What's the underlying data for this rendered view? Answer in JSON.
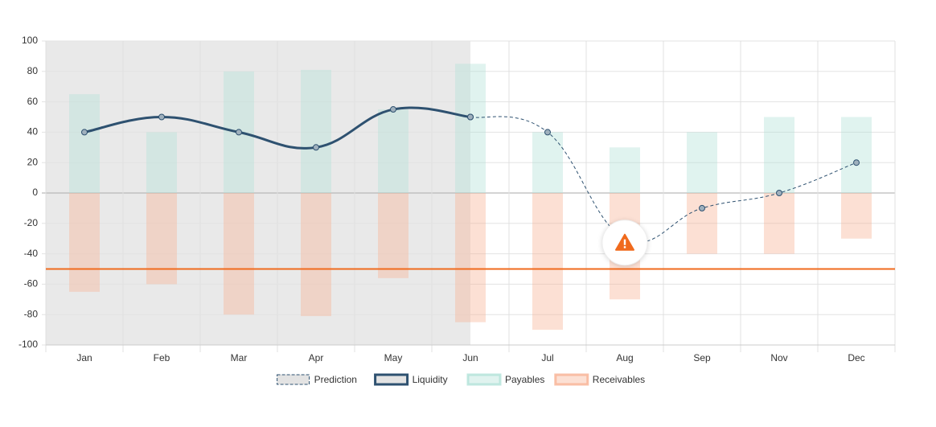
{
  "chart_data": {
    "type": "bar",
    "categories": [
      "Jan",
      "Feb",
      "Mar",
      "Apr",
      "May",
      "Jun",
      "Jul",
      "Aug",
      "Sep",
      "Nov",
      "Dec"
    ],
    "series": [
      {
        "name": "Prediction",
        "color": "#2e5170",
        "values": [
          null,
          null,
          null,
          null,
          null,
          50,
          40,
          -30,
          -10,
          0,
          20
        ]
      },
      {
        "name": "Liquidity",
        "color": "#2e5170",
        "values": [
          40,
          50,
          40,
          30,
          55,
          50,
          null,
          null,
          null,
          null,
          null
        ]
      },
      {
        "name": "Payables",
        "color": "#b2e2d8",
        "values": [
          65,
          40,
          80,
          81,
          55,
          85,
          40,
          30,
          40,
          50,
          50
        ]
      },
      {
        "name": "Receivables",
        "color": "#f7b294",
        "values": [
          -65,
          -60,
          -80,
          -81,
          -56,
          -85,
          -90,
          -70,
          -40,
          -40,
          -30
        ]
      }
    ],
    "threshold": -50,
    "threshold_color": "#f06a1d",
    "ylim": [
      -100,
      100
    ],
    "yticks": [
      -100,
      -80,
      -60,
      -40,
      -20,
      0,
      20,
      40,
      60,
      80,
      100
    ],
    "grid": true
  }
}
